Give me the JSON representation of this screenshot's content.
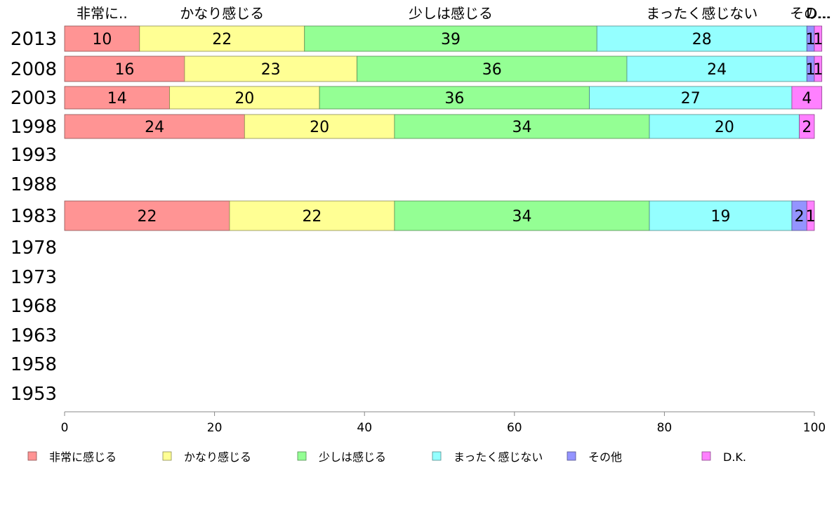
{
  "chart_data": {
    "type": "bar",
    "orientation": "horizontal",
    "stacked": true,
    "percent": true,
    "categories": [
      "2013",
      "2008",
      "2003",
      "1998",
      "1993",
      "1988",
      "1983",
      "1978",
      "1973",
      "1968",
      "1963",
      "1958",
      "1953"
    ],
    "series": [
      {
        "name": "非常に感じる",
        "short_label": "非常に..",
        "color": "#ff9494",
        "values": [
          10,
          16,
          14,
          24,
          null,
          null,
          22,
          null,
          null,
          null,
          null,
          null,
          null
        ]
      },
      {
        "name": "かなり感じる",
        "short_label": "かなり感じる",
        "color": "#ffff94",
        "values": [
          22,
          23,
          20,
          20,
          null,
          null,
          22,
          null,
          null,
          null,
          null,
          null,
          null
        ]
      },
      {
        "name": "少しは感じる",
        "short_label": "少しは感じる",
        "color": "#94ff94",
        "values": [
          39,
          36,
          36,
          34,
          null,
          null,
          34,
          null,
          null,
          null,
          null,
          null,
          null
        ]
      },
      {
        "name": "まったく感じない",
        "short_label": "まったく感じない",
        "color": "#94ffff",
        "values": [
          28,
          24,
          27,
          20,
          null,
          null,
          19,
          null,
          null,
          null,
          null,
          null,
          null
        ]
      },
      {
        "name": "その他",
        "short_label": "その...",
        "color": "#9494ff",
        "values": [
          1,
          1,
          0,
          0,
          null,
          null,
          2,
          null,
          null,
          null,
          null,
          null,
          null
        ]
      },
      {
        "name": "D.K.",
        "short_label": "D...",
        "color": "#ff80ff",
        "values": [
          1,
          1,
          4,
          2,
          null,
          null,
          1,
          null,
          null,
          null,
          null,
          null,
          null
        ]
      }
    ],
    "x_ticks": [
      0,
      20,
      40,
      60,
      80,
      100
    ],
    "xlim": [
      0,
      100
    ],
    "grid": false,
    "legend_position": "bottom"
  }
}
